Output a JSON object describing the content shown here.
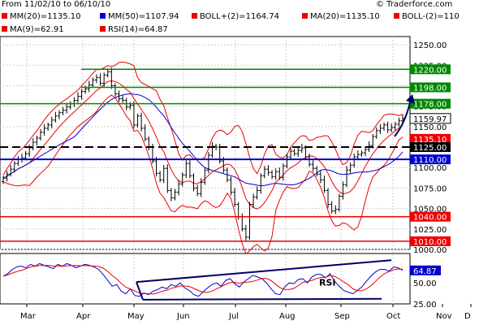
{
  "header": {
    "range": "From 11/02/10 to 06/10/10",
    "copyright": "© Traderforce.com",
    "legend": [
      {
        "label": "MM(20)=1135.10",
        "color": "#ee0000"
      },
      {
        "label": "MM(50)=1107.94",
        "color": "#0000cc"
      },
      {
        "label": "BOLL+(2)=1164.74",
        "color": "#ee0000"
      },
      {
        "label": "MA(20)=1135.10",
        "color": "#ee0000"
      },
      {
        "label": "BOLL-(2)=110",
        "color": "#ee0000"
      },
      {
        "label": "MA(9)=62.91",
        "color": "#ee0000"
      },
      {
        "label": "RSI(14)=64.87",
        "color": "#ee0000"
      }
    ]
  },
  "chart_data": [
    {
      "type": "candlestick",
      "panel": "price",
      "ylim": [
        1000,
        1260
      ],
      "y_ticks": [
        "1250.00",
        "1225.00",
        "1200.00",
        "1175.00",
        "1150.00",
        "1125.00",
        "1100.00",
        "1075.00",
        "1050.00",
        "1025.00",
        "1000.00"
      ],
      "x_ticks": [
        "Mar",
        "Apr",
        "May",
        "Jun",
        "Jul",
        "Aug",
        "Sep",
        "Oct",
        "Nov",
        "D"
      ],
      "levels": [
        {
          "value": 1220,
          "label": "1220.00",
          "color": "#008800"
        },
        {
          "value": 1198,
          "label": "1198.00",
          "color": "#008800"
        },
        {
          "value": 1178,
          "label": "1178.00",
          "color": "#008800"
        },
        {
          "value": 1159.97,
          "label": "1159.97",
          "color": "#ffffff",
          "kind": "last-price"
        },
        {
          "value": 1135.1,
          "label": "1135.10",
          "color": "#ee0000",
          "kind": "ma20"
        },
        {
          "value": 1125,
          "label": "1125.00",
          "color": "#000000",
          "kind": "dashed"
        },
        {
          "value": 1110,
          "label": "1110.00",
          "color": "#0000cc"
        },
        {
          "value": 1040,
          "label": "1040.00",
          "color": "#ee0000"
        },
        {
          "value": 1010,
          "label": "1010.00",
          "color": "#ee0000"
        }
      ],
      "close_series": [
        1087,
        1092,
        1098,
        1105,
        1110,
        1112,
        1117,
        1124,
        1131,
        1136,
        1143,
        1148,
        1152,
        1158,
        1163,
        1167,
        1170,
        1174,
        1178,
        1182,
        1187,
        1193,
        1196,
        1201,
        1207,
        1210,
        1203,
        1213,
        1217,
        1200,
        1190,
        1184,
        1182,
        1174,
        1176,
        1152,
        1163,
        1148,
        1135,
        1125,
        1108,
        1093,
        1085,
        1099,
        1072,
        1063,
        1070,
        1080,
        1091,
        1105,
        1090,
        1075,
        1068,
        1082,
        1097,
        1115,
        1126,
        1125,
        1108,
        1097,
        1085,
        1070,
        1055,
        1040,
        1025,
        1015,
        1055,
        1064,
        1072,
        1090,
        1098,
        1094,
        1089,
        1095,
        1088,
        1102,
        1113,
        1120,
        1117,
        1121,
        1124,
        1113,
        1104,
        1099,
        1092,
        1085,
        1072,
        1055,
        1047,
        1049,
        1065,
        1079,
        1097,
        1103,
        1113,
        1116,
        1118,
        1122,
        1127,
        1138,
        1145,
        1148,
        1152,
        1146,
        1149,
        1153,
        1157,
        1159.97
      ]
    },
    {
      "type": "line",
      "panel": "rsi",
      "ylim": [
        25,
        85
      ],
      "y_ticks": [
        "64.87",
        "50.00",
        "25.00"
      ],
      "series": [
        {
          "name": "RSI",
          "values": [
            58,
            61,
            66,
            69,
            70,
            68,
            72,
            70,
            73,
            71,
            69,
            67,
            72,
            70,
            73,
            71,
            68,
            70,
            72,
            71,
            69,
            66,
            60,
            53,
            46,
            48,
            40,
            37,
            43,
            35,
            34,
            38,
            36,
            40,
            42,
            45,
            43,
            48,
            46,
            50,
            44,
            41,
            36,
            34,
            39,
            44,
            48,
            50,
            46,
            53,
            55,
            49,
            45,
            51,
            55,
            59,
            57,
            55,
            50,
            43,
            37,
            36,
            45,
            50,
            49,
            54,
            55,
            50,
            57,
            60,
            60,
            56,
            61,
            52,
            46,
            41,
            39,
            37,
            41,
            45,
            52,
            58,
            63,
            66,
            66,
            64,
            69,
            68,
            64.87
          ]
        }
      ],
      "label": "RSI",
      "current_value": "64.87"
    }
  ]
}
